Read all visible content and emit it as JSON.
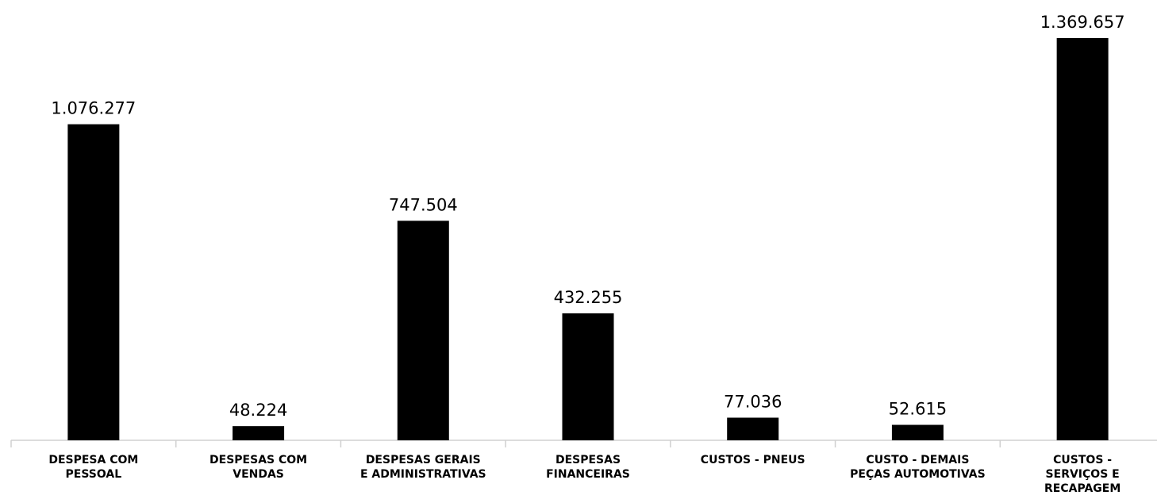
{
  "chart_data": {
    "type": "bar",
    "title": "",
    "xlabel": "",
    "ylabel": "",
    "grid": false,
    "legend": "none",
    "bar_color": "#000000",
    "ylim": [
      0,
      1369657
    ],
    "categories": [
      [
        "DESPESA COM",
        "PESSOAL"
      ],
      [
        "DESPESAS COM",
        "VENDAS"
      ],
      [
        "DESPESAS GERAIS",
        "E ADMINISTRATIVAS"
      ],
      [
        "DESPESAS",
        "FINANCEIRAS"
      ],
      [
        "CUSTOS -  PNEUS"
      ],
      [
        "CUSTO - DEMAIS",
        "PEÇAS AUTOMOTIVAS"
      ],
      [
        "CUSTOS -",
        "SERVIÇOS E",
        "RECAPAGEM"
      ]
    ],
    "values": [
      1076277,
      48224,
      747504,
      432255,
      77036,
      52615,
      1369657
    ],
    "value_labels": [
      "1.076.277",
      "48.224",
      "747.504",
      "432.255",
      "77.036",
      "52.615",
      "1.369.657"
    ]
  }
}
